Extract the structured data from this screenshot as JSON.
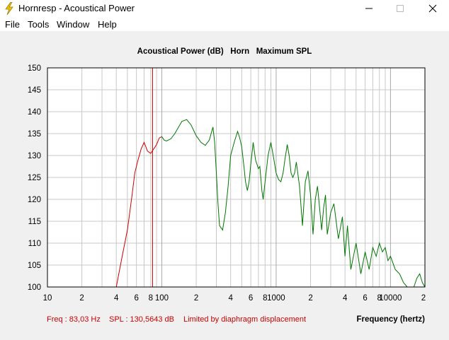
{
  "window": {
    "title": "Hornresp - Acoustical Power",
    "minimize_icon": "minimize-icon",
    "maximize_icon": "maximize-icon",
    "close_icon": "close-icon"
  },
  "menu": [
    "File",
    "Tools",
    "Window",
    "Help"
  ],
  "colors": {
    "low_band": "#cc0000",
    "high_band": "#007700",
    "marker": "#cc0000",
    "status_text": "#cc0000",
    "grid": "#c8c8c8",
    "plot_bg": "#ffffff"
  },
  "chart_data": {
    "type": "line",
    "title": "Acoustical Power (dB)   Horn   Maximum SPL",
    "xlabel": "Frequency (hertz)",
    "ylabel": "",
    "x_scale": "log",
    "xlim": [
      10,
      20000
    ],
    "ylim": [
      100,
      150
    ],
    "y_ticks": [
      "150",
      "145",
      "140",
      "135",
      "130",
      "125",
      "120",
      "115",
      "110",
      "105",
      "100"
    ],
    "x_tick_labels": [
      "10",
      "2",
      "4",
      "6",
      "8",
      "100",
      "2",
      "4",
      "6",
      "8",
      "1000",
      "2",
      "4",
      "6",
      "8",
      "10000",
      "2"
    ],
    "grid": true,
    "series": [
      {
        "color": "#cc0000",
        "x": [
          40,
          45,
          50,
          55,
          58,
          62,
          66,
          70,
          75,
          80,
          85,
          90,
          95,
          100
        ],
        "y": [
          100,
          107,
          113,
          121,
          126,
          129,
          131.5,
          133,
          131,
          130.5,
          131.5,
          132.5,
          134,
          134.3
        ]
      },
      {
        "color": "#007700",
        "x": [
          100,
          105,
          110,
          120,
          130,
          140,
          150,
          165,
          180,
          200,
          220,
          240,
          260,
          280,
          290,
          300,
          310,
          320,
          340,
          360,
          380,
          400,
          430,
          460,
          480,
          500,
          520,
          540,
          560,
          580,
          600,
          630,
          660,
          700,
          720,
          750,
          770,
          800,
          850,
          900,
          950,
          1000,
          1050,
          1100,
          1150,
          1200,
          1250,
          1300,
          1350,
          1400,
          1450,
          1500,
          1600,
          1700,
          1800,
          1900,
          2000,
          2100,
          2200,
          2300,
          2400,
          2500,
          2600,
          2700,
          2800,
          3000,
          3200,
          3500,
          3800,
          4000,
          4200,
          4500,
          5000,
          5500,
          6000,
          6500,
          7000,
          7500,
          8000,
          8500,
          9000,
          9500,
          10000,
          11000,
          12000,
          13000,
          14000,
          15000,
          16000,
          17000,
          18000,
          19000,
          20000
        ],
        "y": [
          134.3,
          133.5,
          133.3,
          133.8,
          135,
          136.5,
          137.8,
          138.2,
          137,
          134.5,
          133,
          132.3,
          133.5,
          136.5,
          133,
          126,
          119,
          114,
          113,
          117,
          123,
          130,
          133,
          135.5,
          134,
          132,
          128,
          124,
          122,
          124,
          128,
          133,
          129,
          127,
          127.5,
          122,
          120,
          124,
          130,
          133,
          129.5,
          126,
          124.5,
          124,
          126,
          129.5,
          132.5,
          130,
          126,
          125,
          126,
          128.5,
          123,
          114,
          124,
          126.5,
          121,
          112,
          120,
          123,
          118,
          113,
          118,
          121,
          112,
          117,
          119,
          111,
          116,
          107,
          114,
          104,
          110,
          103,
          108,
          104,
          109,
          107,
          110,
          108,
          109,
          106,
          107,
          104,
          103,
          101,
          100,
          100,
          100,
          102,
          103,
          101,
          100
        ]
      }
    ],
    "marker_x": 83.03,
    "status": {
      "freq": "Freq : 83,03 Hz",
      "spl": "SPL : 130,5643 dB",
      "note": "Limited by diaphragm displacement"
    }
  }
}
